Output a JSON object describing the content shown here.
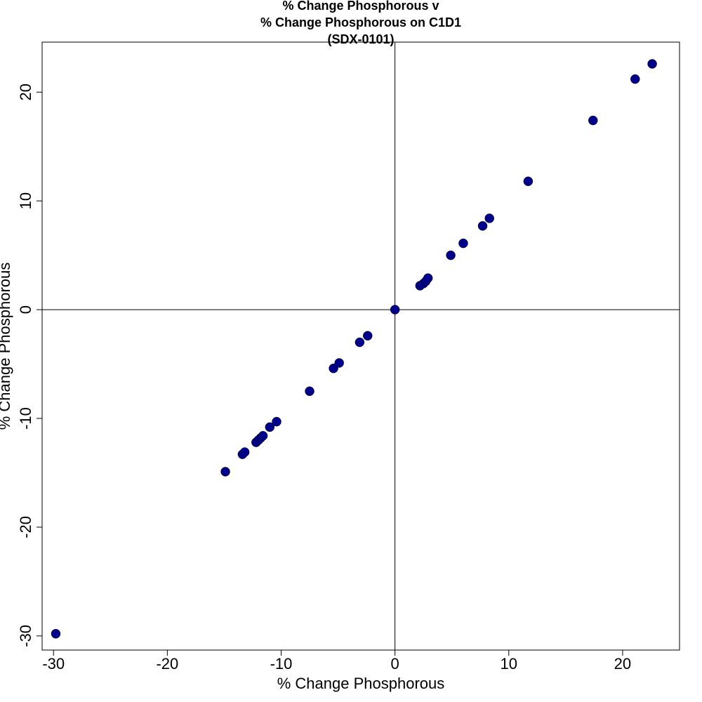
{
  "chart_data": {
    "type": "scatter",
    "title_lines": [
      "% Change Phosphorous v",
      "% Change Phosphorous on C1D1",
      "(SDX-0101)"
    ],
    "xlabel": "% Change Phosphorous",
    "ylabel": "% Change Phosphorous",
    "xlim": [
      -31,
      25
    ],
    "ylim": [
      -31.3,
      24.6
    ],
    "x_ticks": [
      -30,
      -20,
      -10,
      0,
      10,
      20
    ],
    "y_ticks": [
      -30,
      -20,
      -10,
      0,
      10,
      20
    ],
    "reference_lines": {
      "x": 0,
      "y": 0
    },
    "grid": false,
    "marker_color": "#00008B",
    "points": [
      {
        "x": -29.8,
        "y": -29.8
      },
      {
        "x": -14.9,
        "y": -14.9
      },
      {
        "x": -13.4,
        "y": -13.3
      },
      {
        "x": -13.2,
        "y": -13.1
      },
      {
        "x": -12.2,
        "y": -12.2
      },
      {
        "x": -12.0,
        "y": -12.0
      },
      {
        "x": -11.8,
        "y": -11.8
      },
      {
        "x": -11.6,
        "y": -11.6
      },
      {
        "x": -11.0,
        "y": -10.8
      },
      {
        "x": -10.4,
        "y": -10.3
      },
      {
        "x": -7.5,
        "y": -7.5
      },
      {
        "x": -5.4,
        "y": -5.4
      },
      {
        "x": -4.9,
        "y": -4.9
      },
      {
        "x": -3.1,
        "y": -3.0
      },
      {
        "x": -2.4,
        "y": -2.4
      },
      {
        "x": 0.0,
        "y": 0.0
      },
      {
        "x": 2.2,
        "y": 2.2
      },
      {
        "x": 2.5,
        "y": 2.4
      },
      {
        "x": 2.7,
        "y": 2.6
      },
      {
        "x": 2.9,
        "y": 2.9
      },
      {
        "x": 4.9,
        "y": 5.0
      },
      {
        "x": 6.0,
        "y": 6.1
      },
      {
        "x": 7.7,
        "y": 7.7
      },
      {
        "x": 8.3,
        "y": 8.4
      },
      {
        "x": 11.7,
        "y": 11.8
      },
      {
        "x": 17.4,
        "y": 17.4
      },
      {
        "x": 21.1,
        "y": 21.2
      },
      {
        "x": 22.6,
        "y": 22.6
      }
    ]
  }
}
